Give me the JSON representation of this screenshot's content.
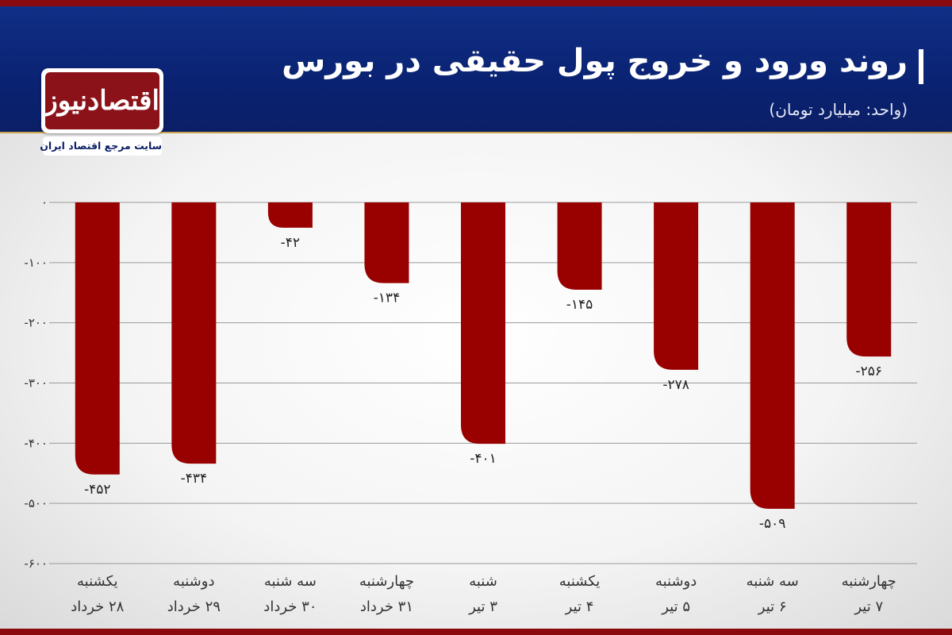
{
  "header": {
    "title": "روند ورود و خروج پول حقیقی در بورس",
    "unit": "(واحد: میلیارد تومان)"
  },
  "logo": {
    "name": "اقتصادنیوز",
    "tagline": "سایت مرجع اقتصاد ایران"
  },
  "colors": {
    "bar": "#990000",
    "header": "#0a2272",
    "stripe": "#8b0a0e"
  },
  "chart_data": {
    "type": "bar",
    "title": "روند ورود و خروج پول حقیقی در بورس",
    "ylabel": "",
    "xlabel": "",
    "ylim": [
      -600,
      0
    ],
    "yticks": [
      0,
      -100,
      -200,
      -300,
      -400,
      -500,
      -600
    ],
    "ytick_labels": [
      "۰",
      "-۱۰۰",
      "-۲۰۰",
      "-۳۰۰",
      "-۴۰۰",
      "-۵۰۰",
      "-۶۰۰"
    ],
    "grid": true,
    "categories": [
      [
        "یکشنبه",
        "۲۸ خرداد"
      ],
      [
        "دوشنبه",
        "۲۹ خرداد"
      ],
      [
        "سه شنبه",
        "۳۰ خرداد"
      ],
      [
        "چهارشنبه",
        "۳۱ خرداد"
      ],
      [
        "شنبه",
        "۳ تیر"
      ],
      [
        "یکشنبه",
        "۴ تیر"
      ],
      [
        "دوشنبه",
        "۵ تیر"
      ],
      [
        "سه شنبه",
        "۶ تیر"
      ],
      [
        "چهارشنبه",
        "۷ تیر"
      ]
    ],
    "values": [
      -452,
      -434,
      -42,
      -134,
      -401,
      -145,
      -278,
      -509,
      -256
    ],
    "value_labels": [
      "-۴۵۲",
      "-۴۳۴",
      "-۴۲",
      "-۱۳۴",
      "-۴۰۱",
      "-۱۴۵",
      "-۲۷۸",
      "-۵۰۹",
      "-۲۵۶"
    ]
  }
}
